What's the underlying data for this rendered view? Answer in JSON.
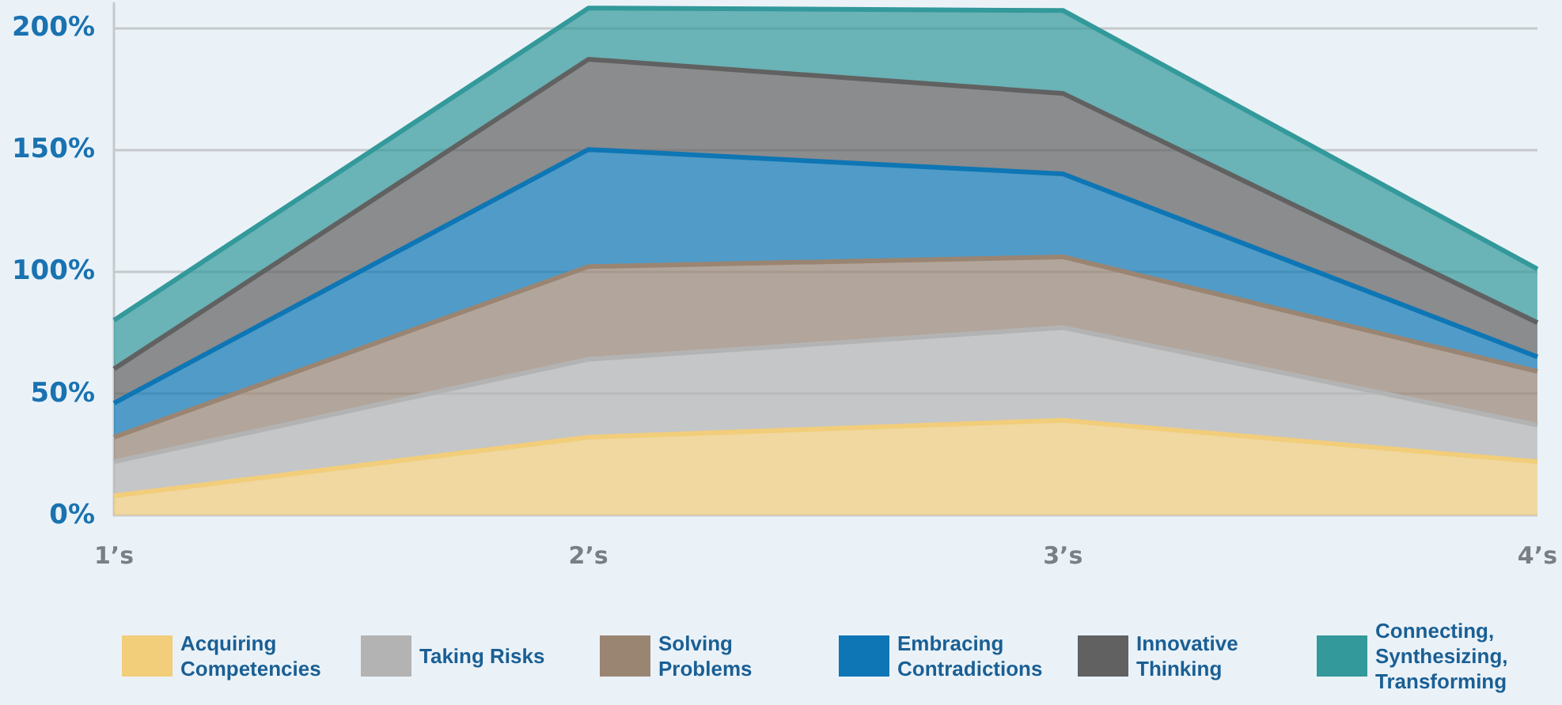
{
  "chart_data": {
    "type": "area",
    "stacked": true,
    "categories": [
      "1’s",
      "2’s",
      "3’s",
      "4’s"
    ],
    "series": [
      {
        "name": "Acquiring Competencies",
        "color": "#f2cd7a",
        "values": [
          8,
          32,
          39,
          22
        ]
      },
      {
        "name": "Taking Risks",
        "color": "#b3b3b3",
        "values": [
          14,
          32,
          38,
          15
        ]
      },
      {
        "name": "Solving Problems",
        "color": "#9a8573",
        "values": [
          10,
          38,
          29,
          22
        ]
      },
      {
        "name": "Embracing Contradictions",
        "color": "#0e76b4",
        "values": [
          14,
          48,
          34,
          6
        ]
      },
      {
        "name": "Innovative Thinking",
        "color": "#616161",
        "values": [
          14,
          37,
          33,
          14
        ]
      },
      {
        "name": "Connecting, Synthesizing, Transforming",
        "color": "#33999a",
        "values": [
          20,
          21,
          34,
          22
        ]
      }
    ],
    "ylim": [
      0,
      210
    ],
    "yticks": [
      {
        "value": 0,
        "label": "0%"
      },
      {
        "value": 50,
        "label": "50%"
      },
      {
        "value": 100,
        "label": "100%"
      },
      {
        "value": 150,
        "label": "150%"
      },
      {
        "value": 200,
        "label": "200%"
      }
    ],
    "grid": "y",
    "legend": "bottom",
    "marker": "none",
    "line_style": "solid"
  }
}
